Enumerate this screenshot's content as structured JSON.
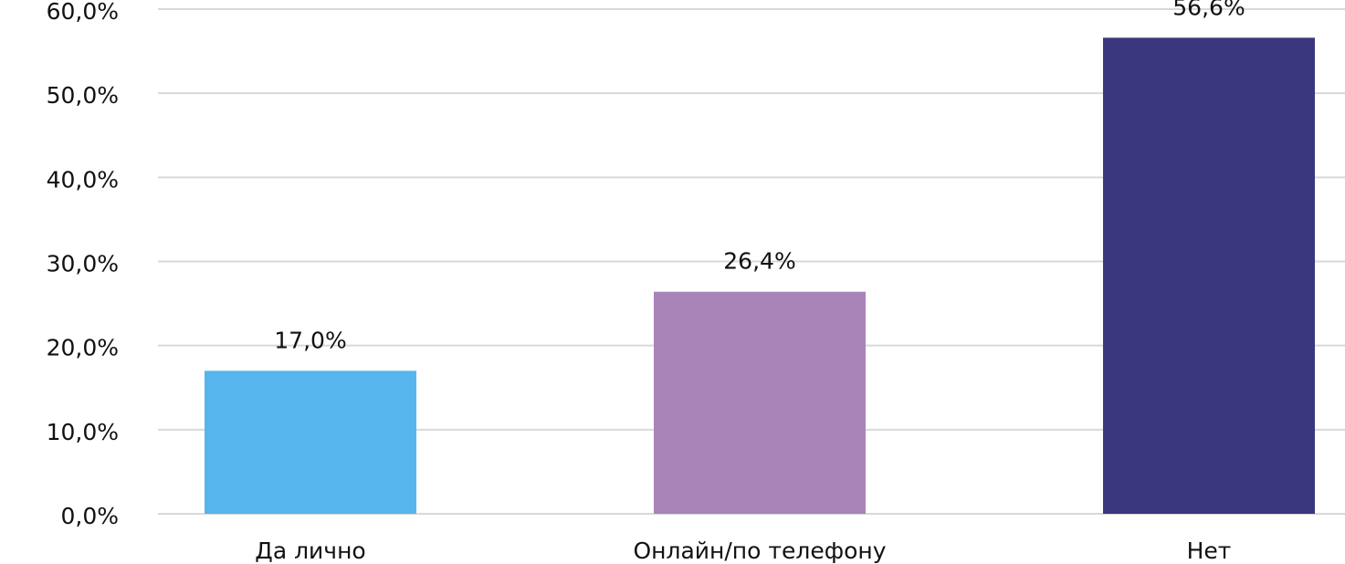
{
  "chart_data": {
    "type": "bar",
    "categories": [
      "Да лично",
      "Онлайн/по телефону",
      "Нет"
    ],
    "values": [
      17.0,
      26.4,
      56.6
    ],
    "value_labels": [
      "17,0%",
      "26,4%",
      "56,6%"
    ],
    "colors": [
      "#56b5ec",
      "#a984b8",
      "#3b377e"
    ],
    "ylim": [
      0,
      60
    ],
    "yticks": [
      {
        "value": 0,
        "label": "0,0%"
      },
      {
        "value": 10,
        "label": "10,0%"
      },
      {
        "value": 20,
        "label": "20,0%"
      },
      {
        "value": 30,
        "label": "30,0%"
      },
      {
        "value": 40,
        "label": "40,0%"
      },
      {
        "value": 50,
        "label": "50,0%"
      },
      {
        "value": 60,
        "label": "60,0%"
      }
    ],
    "grid": true
  }
}
